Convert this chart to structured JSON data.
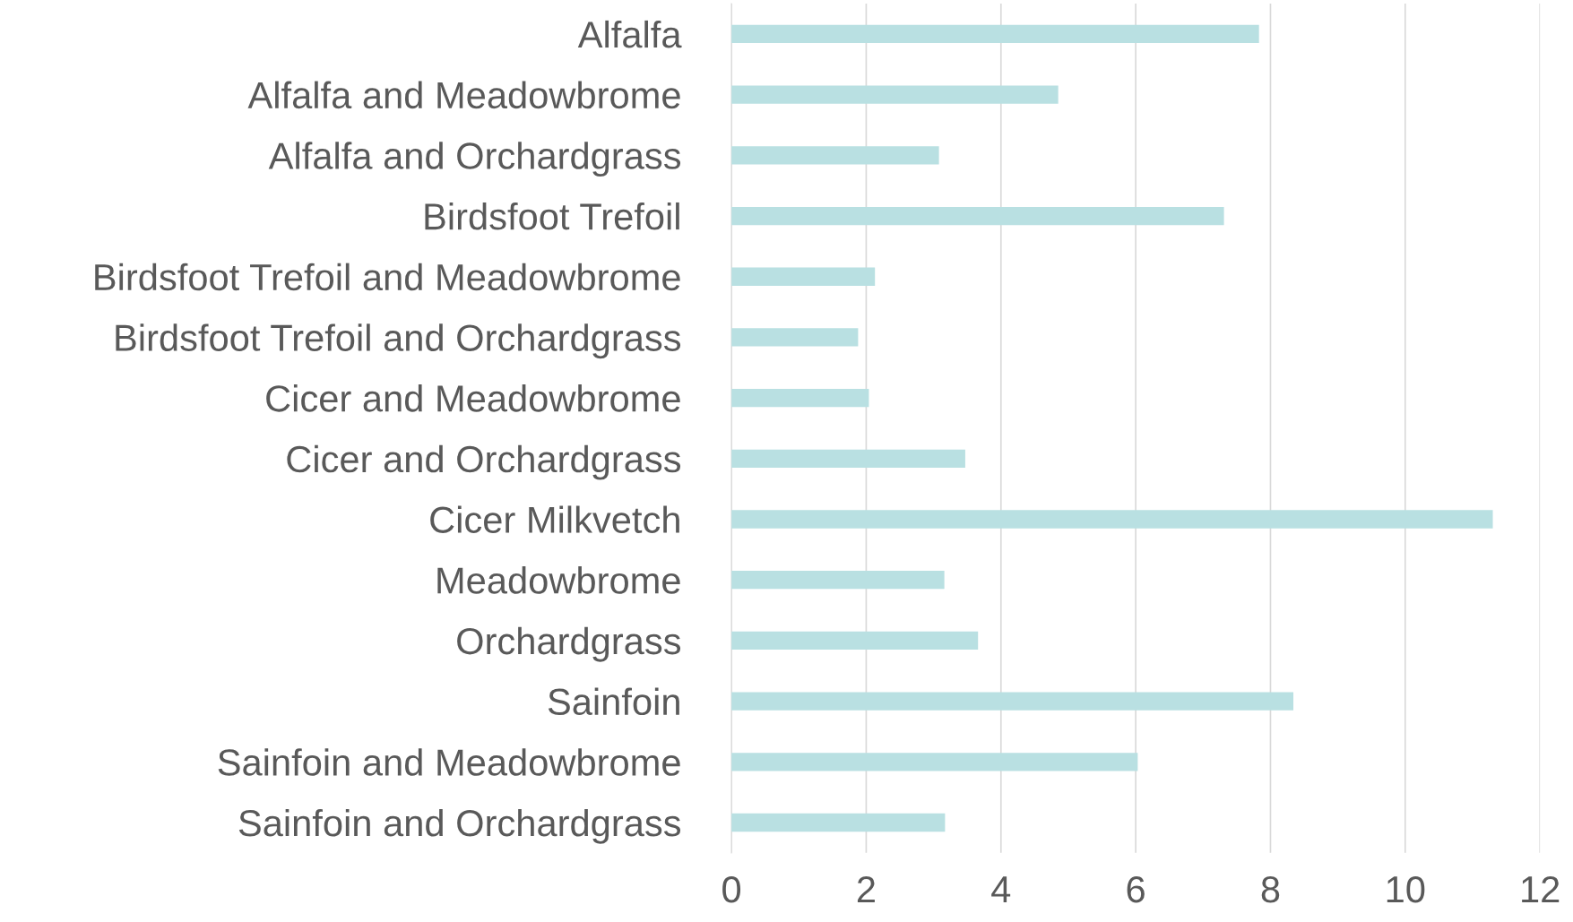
{
  "chart_data": {
    "type": "bar",
    "orientation": "horizontal",
    "categories": [
      "Alfalfa",
      "Alfalfa and Meadowbrome",
      "Alfalfa and Orchardgrass",
      "Birdsfoot Trefoil",
      "Birdsfoot Trefoil and Meadowbrome",
      "Birdsfoot Trefoil and Orchardgrass",
      "Cicer and Meadowbrome",
      "Cicer and Orchardgrass",
      "Cicer Milkvetch",
      "Meadowbrome",
      "Orchardgrass",
      "Sainfoin",
      "Sainfoin and Meadowbrome",
      "Sainfoin and Orchardgrass"
    ],
    "values": [
      7.83,
      4.85,
      3.08,
      7.31,
      2.13,
      1.88,
      2.04,
      3.47,
      11.3,
      3.16,
      3.66,
      8.34,
      6.03,
      3.17
    ],
    "color": "#b9e0e2",
    "xlim": [
      0,
      12
    ],
    "xticks": [
      0,
      2,
      4,
      6,
      8,
      10,
      12
    ],
    "grid": "x",
    "legend": false
  }
}
